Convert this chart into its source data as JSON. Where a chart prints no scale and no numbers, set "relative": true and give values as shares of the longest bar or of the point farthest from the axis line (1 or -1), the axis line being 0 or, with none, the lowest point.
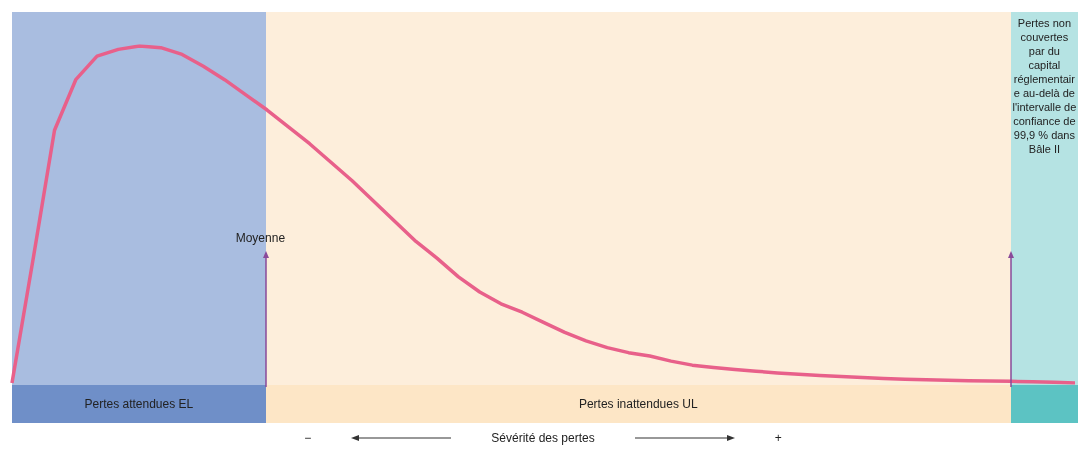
{
  "chart_data": {
    "type": "line",
    "relative": true,
    "grid": false,
    "marker": "none",
    "line_style": "solid",
    "categories": [
      null,
      null,
      null,
      null,
      null,
      null,
      null,
      null,
      null,
      null,
      null,
      null,
      null,
      null,
      null,
      null,
      null,
      null,
      null,
      null,
      null,
      null,
      null,
      null,
      null,
      null,
      null,
      null,
      null,
      null,
      null,
      null,
      null,
      null,
      null,
      null,
      null,
      null,
      null,
      null,
      null,
      null,
      null,
      null,
      null,
      null,
      null,
      null,
      null,
      null,
      null
    ],
    "series": [
      {
        "color": "#e8608a",
        "values": [
          0,
          0.37,
          0.75,
          0.9,
          0.97,
          0.99,
          1,
          0.995,
          0.975,
          0.94,
          0.9,
          0.855,
          0.81,
          0.76,
          0.71,
          0.655,
          0.6,
          0.54,
          0.48,
          0.42,
          0.37,
          0.315,
          0.27,
          0.235,
          0.21,
          0.18,
          0.15,
          0.125,
          0.105,
          0.09,
          0.08,
          0.065,
          0.053,
          0.046,
          0.04,
          0.035,
          0.03,
          0.026,
          0.022,
          0.019,
          0.016,
          0.013,
          0.011,
          0.0095,
          0.008,
          0.007,
          0.006,
          0.005,
          0.004,
          0.002,
          0
        ]
      }
    ],
    "annotations": [
      "Moyenne",
      "Pertes attendues EL",
      "Pertes inattendues UL",
      "Pertes non couvertes par du capital réglementaire au-delà de l'intervalle de confiance de 99,9 % dans Bâle II",
      "−",
      "Sévérité des pertes",
      "+"
    ]
  }
}
